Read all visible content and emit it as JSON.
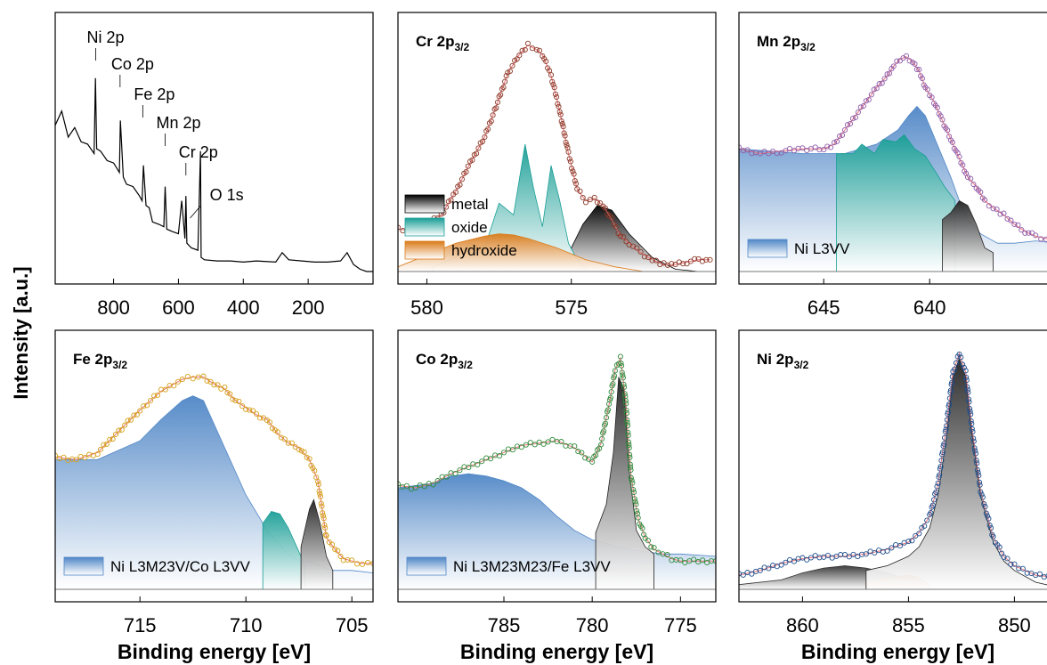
{
  "figure": {
    "ylabel": "Intensity [a.u.]",
    "xlabel": "Binding energy [eV]"
  },
  "chart_data": [
    {
      "id": "survey",
      "type": "line",
      "title": "",
      "xlabel": "",
      "ylabel": "Intensity [a.u.]",
      "xlim": [
        980,
        0
      ],
      "xticks": [
        800,
        600,
        400,
        200
      ],
      "reversed_x": true,
      "annotations": [
        {
          "text": "Ni 2p",
          "x": 855
        },
        {
          "text": "Co 2p",
          "x": 780
        },
        {
          "text": "Fe 2p",
          "x": 710
        },
        {
          "text": "Mn 2p",
          "x": 641
        },
        {
          "text": "Cr 2p",
          "x": 577
        },
        {
          "text": "O 1s",
          "x": 531
        }
      ],
      "series": [
        {
          "color": "#000000",
          "x": [
            980,
            960,
            940,
            920,
            900,
            880,
            860,
            856,
            852,
            840,
            820,
            800,
            782,
            779,
            770,
            760,
            740,
            720,
            712,
            708,
            700,
            690,
            680,
            660,
            645,
            641,
            636,
            620,
            600,
            590,
            580,
            577,
            574,
            560,
            540,
            532,
            530,
            520,
            480,
            440,
            400,
            360,
            300,
            280,
            260,
            220,
            180,
            140,
            100,
            80,
            60,
            40,
            20,
            0
          ],
          "y": [
            0.62,
            0.68,
            0.57,
            0.61,
            0.55,
            0.54,
            0.5,
            0.82,
            0.52,
            0.51,
            0.47,
            0.46,
            0.42,
            0.64,
            0.4,
            0.37,
            0.36,
            0.32,
            0.3,
            0.45,
            0.28,
            0.27,
            0.21,
            0.2,
            0.19,
            0.36,
            0.18,
            0.17,
            0.16,
            0.3,
            0.14,
            0.32,
            0.12,
            0.1,
            0.09,
            0.51,
            0.06,
            0.05,
            0.045,
            0.045,
            0.04,
            0.045,
            0.04,
            0.08,
            0.05,
            0.045,
            0.04,
            0.04,
            0.045,
            0.08,
            0.03,
            0.01,
            0.0,
            0.0
          ]
        }
      ]
    },
    {
      "id": "cr",
      "type": "area",
      "title": "Cr 2p3/2",
      "xlim": [
        581,
        570
      ],
      "xticks": [
        580,
        575
      ],
      "reversed_x": true,
      "legend": [
        {
          "label": "metal",
          "color": "#000000"
        },
        {
          "label": "oxide",
          "color": "#1a9e96"
        },
        {
          "label": "hydroxide",
          "color": "#d97b1a"
        }
      ],
      "series": [
        {
          "name": "metal",
          "color": "#000000",
          "x": [
            576.2,
            575.2,
            574.6,
            574.1,
            573.6,
            573.0,
            572.2,
            571.4,
            570.6
          ],
          "y": [
            0.0,
            0.05,
            0.2,
            0.28,
            0.26,
            0.16,
            0.06,
            0.01,
            0.0
          ]
        },
        {
          "name": "oxide",
          "color": "#1a9e96",
          "x": [
            579.8,
            579.0,
            578.5,
            578.0,
            577.5,
            577.0,
            576.6,
            576.3,
            576.0,
            575.7,
            575.4,
            575.1,
            574.8,
            574.4
          ],
          "y": [
            0.02,
            0.06,
            0.12,
            0.1,
            0.29,
            0.24,
            0.54,
            0.35,
            0.19,
            0.45,
            0.3,
            0.12,
            0.05,
            0.0
          ]
        },
        {
          "name": "hydroxide",
          "color": "#d97b1a",
          "x": [
            581,
            580,
            579,
            578,
            577.5,
            577,
            576.5,
            575.5,
            574.5,
            573.5,
            572.5
          ],
          "y": [
            0.02,
            0.07,
            0.12,
            0.15,
            0.16,
            0.155,
            0.14,
            0.1,
            0.05,
            0.02,
            0.0
          ]
        },
        {
          "name": "data",
          "color": "#8b3a28",
          "x": [
            581,
            580.5,
            580,
            579.5,
            579,
            578.5,
            578,
            577.6,
            577.2,
            576.8,
            576.5,
            576.2,
            576,
            575.7,
            575.4,
            575.1,
            574.8,
            574.5,
            574.2,
            573.9,
            573.6,
            573.3,
            573,
            572.6,
            572.2,
            571.8,
            571.4,
            571,
            570.6,
            570.2
          ],
          "y": [
            0.18,
            0.17,
            0.2,
            0.24,
            0.34,
            0.46,
            0.57,
            0.7,
            0.84,
            0.92,
            0.96,
            0.94,
            0.92,
            0.83,
            0.68,
            0.5,
            0.35,
            0.3,
            0.31,
            0.28,
            0.22,
            0.15,
            0.12,
            0.08,
            0.05,
            0.03,
            0.03,
            0.04,
            0.05,
            0.05
          ]
        }
      ]
    },
    {
      "id": "mn",
      "type": "area",
      "title": "Mn 2p3/2",
      "xlim": [
        649,
        634
      ],
      "xticks": [
        645,
        640
      ],
      "reversed_x": true,
      "legend": [
        {
          "label": "Ni L3VV",
          "color": "#4f86c6"
        }
      ],
      "series": [
        {
          "name": "Ni L3VV",
          "color": "#4f86c6",
          "x": [
            649,
            646,
            644,
            642.5,
            641.5,
            641,
            640.6,
            640.2,
            639.6,
            639,
            638.6,
            638.2,
            637.6,
            636.8,
            636,
            635,
            634
          ],
          "y": [
            0.52,
            0.5,
            0.5,
            0.54,
            0.6,
            0.66,
            0.7,
            0.66,
            0.53,
            0.4,
            0.3,
            0.22,
            0.16,
            0.12,
            0.12,
            0.13,
            0.12
          ]
        },
        {
          "name": "oxide",
          "color": "#1a9e96",
          "x": [
            644.4,
            643.6,
            643.2,
            642.6,
            642.2,
            641.6,
            641.2,
            640.7,
            640.2,
            639.7,
            639.3,
            638.8
          ],
          "y": [
            0.5,
            0.5,
            0.54,
            0.5,
            0.56,
            0.55,
            0.58,
            0.52,
            0.49,
            0.42,
            0.36,
            0.3
          ]
        },
        {
          "name": "metal",
          "color": "#222222",
          "x": [
            639.4,
            639.0,
            638.6,
            638.2,
            637.8,
            637.4,
            637.0
          ],
          "y": [
            0.22,
            0.25,
            0.3,
            0.28,
            0.2,
            0.1,
            0.08
          ]
        },
        {
          "name": "data",
          "color": "#8e5aa8",
          "x": [
            649,
            648,
            647,
            646,
            645,
            644.5,
            644,
            643.5,
            643,
            642.5,
            642,
            641.7,
            641.4,
            641.1,
            640.8,
            640.5,
            640.2,
            639.8,
            639.4,
            639,
            638.6,
            638.2,
            637.8,
            637.4,
            637,
            636.5,
            636,
            635.5,
            635,
            634.5,
            634
          ],
          "y": [
            0.52,
            0.5,
            0.51,
            0.52,
            0.52,
            0.54,
            0.6,
            0.66,
            0.72,
            0.78,
            0.83,
            0.87,
            0.9,
            0.91,
            0.89,
            0.85,
            0.78,
            0.72,
            0.64,
            0.56,
            0.48,
            0.4,
            0.36,
            0.3,
            0.27,
            0.24,
            0.2,
            0.17,
            0.15,
            0.14,
            0.13
          ]
        }
      ]
    },
    {
      "id": "fe",
      "type": "area",
      "title": "Fe 2p3/2",
      "xlim": [
        719,
        704
      ],
      "xticks": [
        715,
        710,
        705
      ],
      "reversed_x": true,
      "legend": [
        {
          "label": "Ni L3M23V/Co L3VV",
          "color": "#4f86c6"
        }
      ],
      "series": [
        {
          "name": "Ni L3M23V/Co L3VV",
          "color": "#4f86c6",
          "x": [
            719,
            717,
            715,
            714,
            713,
            712.5,
            712,
            711,
            710,
            709,
            708.5,
            708,
            707.5,
            707,
            706.5,
            706,
            705,
            704
          ],
          "y": [
            0.55,
            0.55,
            0.63,
            0.72,
            0.8,
            0.82,
            0.8,
            0.6,
            0.4,
            0.25,
            0.2,
            0.15,
            0.12,
            0.12,
            0.1,
            0.08,
            0.08,
            0.07
          ]
        },
        {
          "name": "oxide",
          "color": "#1a9e96",
          "x": [
            709.2,
            708.8,
            708.4,
            708.0,
            707.6,
            707.2
          ],
          "y": [
            0.28,
            0.33,
            0.32,
            0.26,
            0.18,
            0.1
          ]
        },
        {
          "name": "metal",
          "color": "#222222",
          "x": [
            707.4,
            707.0,
            706.8,
            706.5,
            706.2,
            705.9
          ],
          "y": [
            0.18,
            0.34,
            0.38,
            0.28,
            0.14,
            0.08
          ]
        },
        {
          "name": "data",
          "color": "#d4a017",
          "x": [
            719,
            718,
            717,
            716,
            715,
            714,
            713,
            712.5,
            712,
            711.5,
            711,
            710.5,
            710,
            709.5,
            709,
            708.5,
            708,
            707.5,
            707,
            706.6,
            706.2,
            705.8,
            705.4,
            705,
            704.5,
            704
          ],
          "y": [
            0.56,
            0.55,
            0.58,
            0.67,
            0.76,
            0.84,
            0.89,
            0.9,
            0.9,
            0.87,
            0.85,
            0.8,
            0.77,
            0.74,
            0.72,
            0.66,
            0.62,
            0.6,
            0.55,
            0.46,
            0.22,
            0.17,
            0.13,
            0.12,
            0.11,
            0.11
          ]
        }
      ]
    },
    {
      "id": "co",
      "type": "area",
      "title": "Co 2p3/2",
      "xlim": [
        791,
        773
      ],
      "xticks": [
        785,
        780,
        775
      ],
      "reversed_x": true,
      "legend": [
        {
          "label": "Ni L3M23M23/Fe L3VV",
          "color": "#4f86c6"
        }
      ],
      "series": [
        {
          "name": "Ni L3M23M23/Fe L3VV",
          "color": "#4f86c6",
          "x": [
            791,
            789,
            788,
            787,
            786,
            785,
            784,
            783,
            782,
            781.5,
            781,
            780,
            779,
            778,
            777,
            776,
            775,
            773
          ],
          "y": [
            0.43,
            0.45,
            0.48,
            0.49,
            0.48,
            0.46,
            0.43,
            0.38,
            0.31,
            0.28,
            0.25,
            0.21,
            0.19,
            0.17,
            0.16,
            0.15,
            0.15,
            0.14
          ]
        },
        {
          "name": "metal",
          "color": "#222222",
          "x": [
            779.8,
            779.2,
            778.8,
            778.5,
            778.2,
            777.9,
            777.5,
            777.0,
            776.5
          ],
          "y": [
            0.24,
            0.36,
            0.58,
            0.9,
            0.85,
            0.5,
            0.25,
            0.18,
            0.15
          ]
        },
        {
          "name": "data",
          "color": "#2e8b3a",
          "x": [
            791,
            790,
            789,
            788,
            787,
            786,
            785,
            784,
            783,
            782,
            781,
            780,
            779.5,
            779,
            778.7,
            778.4,
            778.1,
            777.8,
            777.4,
            777,
            776.5,
            776,
            775.5,
            775,
            774,
            773
          ],
          "y": [
            0.44,
            0.43,
            0.45,
            0.49,
            0.52,
            0.55,
            0.58,
            0.61,
            0.62,
            0.63,
            0.6,
            0.54,
            0.62,
            0.8,
            0.93,
            0.98,
            0.8,
            0.48,
            0.3,
            0.22,
            0.17,
            0.15,
            0.13,
            0.12,
            0.12,
            0.12
          ]
        }
      ]
    },
    {
      "id": "ni",
      "type": "area",
      "title": "Ni 2p3/2",
      "xlim": [
        863,
        848
      ],
      "xticks": [
        860,
        855,
        850
      ],
      "reversed_x": true,
      "legend": [],
      "series": [
        {
          "name": "satellite",
          "color": "#333333",
          "x": [
            863,
            861,
            860,
            859,
            858,
            857,
            856,
            855,
            854
          ],
          "y": [
            0.02,
            0.04,
            0.07,
            0.09,
            0.1,
            0.09,
            0.07,
            0.04,
            0.02
          ]
        },
        {
          "name": "hydroxide",
          "color": "#d97b1a",
          "x": [
            857,
            856,
            855,
            854.5,
            854
          ],
          "y": [
            0.03,
            0.05,
            0.06,
            0.05,
            0.02
          ]
        },
        {
          "name": "metal",
          "color": "#222222",
          "x": [
            857,
            856,
            855,
            854.5,
            854,
            853.6,
            853.2,
            852.9,
            852.6,
            852.3,
            852,
            851.6,
            851,
            850.5,
            850,
            849,
            848
          ],
          "y": [
            0.08,
            0.1,
            0.14,
            0.18,
            0.26,
            0.4,
            0.65,
            0.9,
            0.98,
            0.9,
            0.66,
            0.4,
            0.2,
            0.12,
            0.08,
            0.03,
            0.01
          ]
        },
        {
          "name": "data",
          "color": "#1f4e8c",
          "x": [
            863,
            862,
            861,
            860,
            859,
            858,
            857,
            856,
            855,
            854.5,
            854,
            853.6,
            853.2,
            852.9,
            852.6,
            852.3,
            852,
            851.6,
            851,
            850.5,
            850,
            849,
            848
          ],
          "y": [
            0.06,
            0.08,
            0.11,
            0.13,
            0.14,
            0.14,
            0.15,
            0.17,
            0.2,
            0.24,
            0.31,
            0.45,
            0.7,
            0.92,
            1.0,
            0.92,
            0.68,
            0.42,
            0.22,
            0.14,
            0.1,
            0.06,
            0.05
          ]
        }
      ]
    }
  ]
}
